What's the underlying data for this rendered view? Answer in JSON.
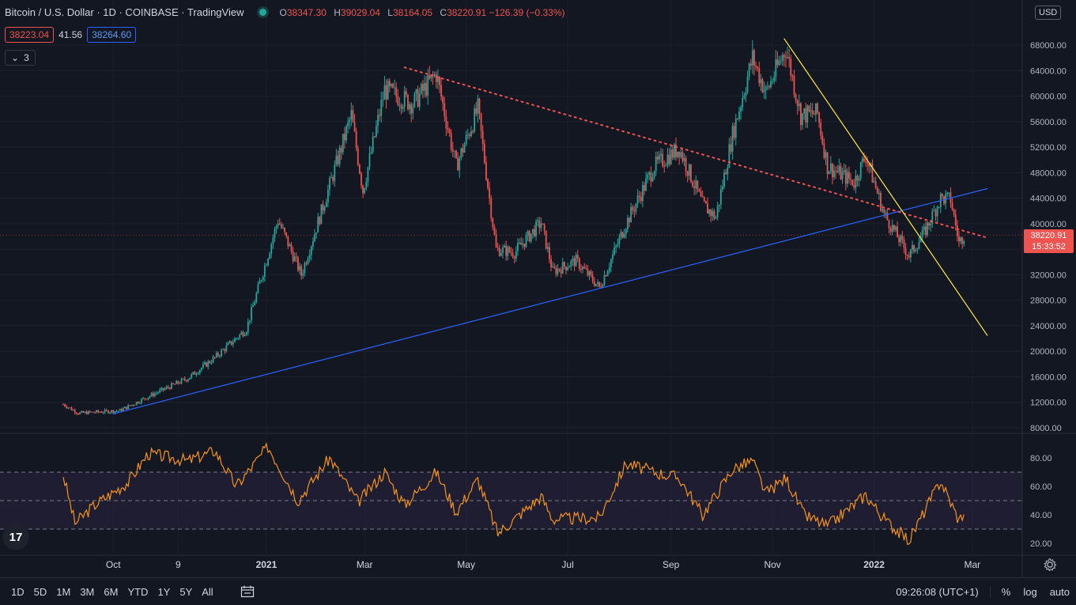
{
  "header": {
    "symbol_title": "Bitcoin / U.S. Dollar · 1D · COINBASE · TradingView",
    "ohlc": [
      {
        "label": "O",
        "value": "38347.30"
      },
      {
        "label": "H",
        "value": "39029.04"
      },
      {
        "label": "L",
        "value": "38164.05"
      },
      {
        "label": "C",
        "value": "38220.91 −126.39 (−0.33%)"
      }
    ],
    "sell_price": "38223.04",
    "spread": "41.56",
    "buy_price": "38264.60",
    "indicators_collapse": "3"
  },
  "currency": "USD",
  "last_price": {
    "value": "38220.91",
    "countdown": "15:33:52"
  },
  "clock": "09:26:08 (UTC+1)",
  "range_buttons": [
    "1D",
    "5D",
    "1M",
    "3M",
    "6M",
    "YTD",
    "1Y",
    "5Y",
    "All"
  ],
  "scale_buttons": {
    "percent": "%",
    "log": "log",
    "auto": "auto"
  },
  "icons": {
    "status": "live-dot-icon",
    "compare": "calendar-icon",
    "settings": "gear-icon",
    "logo": "tradingview-logo-icon",
    "collapse": "chevron-down-icon"
  },
  "colors": {
    "up": "#26a69a",
    "down": "#ef5350",
    "background": "#131722",
    "rsi": "#f7931a",
    "blue_trendline": "#2962ff",
    "yellow_trendline": "#ffeb3b",
    "red_dotted": "#ef5350"
  },
  "chart_data": [
    {
      "type": "candlestick",
      "title": "Bitcoin / U.S. Dollar · 1D · COINBASE",
      "xlabel": "",
      "ylabel": "",
      "scale": "log",
      "x_ticks": [
        "Oct",
        "9",
        "2021",
        "Mar",
        "May",
        "Jul",
        "Sep",
        "Nov",
        "2022",
        "Mar"
      ],
      "y_ticks": [
        8000,
        12000,
        16000,
        20000,
        24000,
        28000,
        32000,
        36000,
        40000,
        44000,
        48000,
        52000,
        56000,
        60000,
        64000,
        68000
      ],
      "ylim": [
        8000,
        72000
      ],
      "close_path": [
        {
          "date": "2020-09-01",
          "close": 11700
        },
        {
          "date": "2020-09-10",
          "close": 10300
        },
        {
          "date": "2020-10-05",
          "close": 10700
        },
        {
          "date": "2020-10-22",
          "close": 12900
        },
        {
          "date": "2020-11-15",
          "close": 15800
        },
        {
          "date": "2020-12-01",
          "close": 19000
        },
        {
          "date": "2020-12-20",
          "close": 23500
        },
        {
          "date": "2021-01-08",
          "close": 40600
        },
        {
          "date": "2021-01-22",
          "close": 32000
        },
        {
          "date": "2021-02-08",
          "close": 46000
        },
        {
          "date": "2021-02-21",
          "close": 57000
        },
        {
          "date": "2021-02-28",
          "close": 45200
        },
        {
          "date": "2021-03-13",
          "close": 61000
        },
        {
          "date": "2021-03-30",
          "close": 58800
        },
        {
          "date": "2021-04-13",
          "close": 63500
        },
        {
          "date": "2021-04-25",
          "close": 49000
        },
        {
          "date": "2021-05-08",
          "close": 58000
        },
        {
          "date": "2021-05-19",
          "close": 36000
        },
        {
          "date": "2021-05-30",
          "close": 35500
        },
        {
          "date": "2021-06-15",
          "close": 40200
        },
        {
          "date": "2021-06-22",
          "close": 32500
        },
        {
          "date": "2021-07-06",
          "close": 34200
        },
        {
          "date": "2021-07-20",
          "close": 30000
        },
        {
          "date": "2021-08-05",
          "close": 40000
        },
        {
          "date": "2021-08-22",
          "close": 49000
        },
        {
          "date": "2021-09-06",
          "close": 51800
        },
        {
          "date": "2021-09-20",
          "close": 43000
        },
        {
          "date": "2021-09-28",
          "close": 41000
        },
        {
          "date": "2021-10-08",
          "close": 54000
        },
        {
          "date": "2021-10-20",
          "close": 66000
        },
        {
          "date": "2021-10-28",
          "close": 60500
        },
        {
          "date": "2021-11-09",
          "close": 67500
        },
        {
          "date": "2021-11-18",
          "close": 57000
        },
        {
          "date": "2021-11-28",
          "close": 57300
        },
        {
          "date": "2021-12-04",
          "close": 49000
        },
        {
          "date": "2021-12-20",
          "close": 46500
        },
        {
          "date": "2021-12-27",
          "close": 50700
        },
        {
          "date": "2022-01-07",
          "close": 41500
        },
        {
          "date": "2022-01-22",
          "close": 35000
        },
        {
          "date": "2022-01-31",
          "close": 38500
        },
        {
          "date": "2022-02-10",
          "close": 44000
        },
        {
          "date": "2022-02-16",
          "close": 43800
        },
        {
          "date": "2022-02-21",
          "close": 37000
        },
        {
          "date": "2022-02-24",
          "close": 38220.91
        }
      ],
      "trendlines": [
        {
          "name": "blue-support",
          "color": "#2962ff",
          "style": "solid",
          "from": {
            "date": "2020-10-01",
            "price": 10200
          },
          "to": {
            "date": "2022-03-10",
            "price": 45500
          }
        },
        {
          "name": "red-dotted-resistance",
          "color": "#ef5350",
          "style": "dotted",
          "from": {
            "date": "2021-03-25",
            "price": 64500
          },
          "to": {
            "date": "2022-03-10",
            "price": 37800
          }
        },
        {
          "name": "yellow-downtrend",
          "color": "#ffeb3b",
          "style": "solid",
          "from": {
            "date": "2021-11-08",
            "price": 69000
          },
          "to": {
            "date": "2022-03-10",
            "price": 22500
          }
        }
      ]
    },
    {
      "type": "line",
      "title": "",
      "xlabel": "",
      "ylabel": "",
      "y_ticks": [
        20,
        40,
        60,
        80
      ],
      "ylim": [
        15,
        92
      ],
      "band": [
        30,
        70
      ],
      "midline": 50,
      "series": [
        {
          "points": [
            {
              "date": "2020-09-01",
              "value": 68
            },
            {
              "date": "2020-09-08",
              "value": 34
            },
            {
              "date": "2020-09-20",
              "value": 47
            },
            {
              "date": "2020-10-10",
              "value": 63
            },
            {
              "date": "2020-10-22",
              "value": 83
            },
            {
              "date": "2020-11-15",
              "value": 78
            },
            {
              "date": "2020-12-01",
              "value": 85
            },
            {
              "date": "2020-12-14",
              "value": 60
            },
            {
              "date": "2021-01-02",
              "value": 88
            },
            {
              "date": "2021-01-20",
              "value": 50
            },
            {
              "date": "2021-02-08",
              "value": 80
            },
            {
              "date": "2021-02-25",
              "value": 49
            },
            {
              "date": "2021-03-13",
              "value": 70
            },
            {
              "date": "2021-03-25",
              "value": 47
            },
            {
              "date": "2021-04-13",
              "value": 70
            },
            {
              "date": "2021-04-25",
              "value": 42
            },
            {
              "date": "2021-05-08",
              "value": 65
            },
            {
              "date": "2021-05-20",
              "value": 27
            },
            {
              "date": "2021-06-15",
              "value": 53
            },
            {
              "date": "2021-06-22",
              "value": 37
            },
            {
              "date": "2021-07-20",
              "value": 38
            },
            {
              "date": "2021-08-05",
              "value": 76
            },
            {
              "date": "2021-08-22",
              "value": 70
            },
            {
              "date": "2021-09-06",
              "value": 66
            },
            {
              "date": "2021-09-20",
              "value": 40
            },
            {
              "date": "2021-10-08",
              "value": 72
            },
            {
              "date": "2021-10-20",
              "value": 78
            },
            {
              "date": "2021-10-28",
              "value": 55
            },
            {
              "date": "2021-11-09",
              "value": 66
            },
            {
              "date": "2021-11-20",
              "value": 40
            },
            {
              "date": "2021-12-04",
              "value": 32
            },
            {
              "date": "2021-12-27",
              "value": 54
            },
            {
              "date": "2022-01-07",
              "value": 37
            },
            {
              "date": "2022-01-22",
              "value": 22
            },
            {
              "date": "2022-02-10",
              "value": 64
            },
            {
              "date": "2022-02-21",
              "value": 36
            },
            {
              "date": "2022-02-24",
              "value": 42
            }
          ]
        }
      ]
    }
  ]
}
